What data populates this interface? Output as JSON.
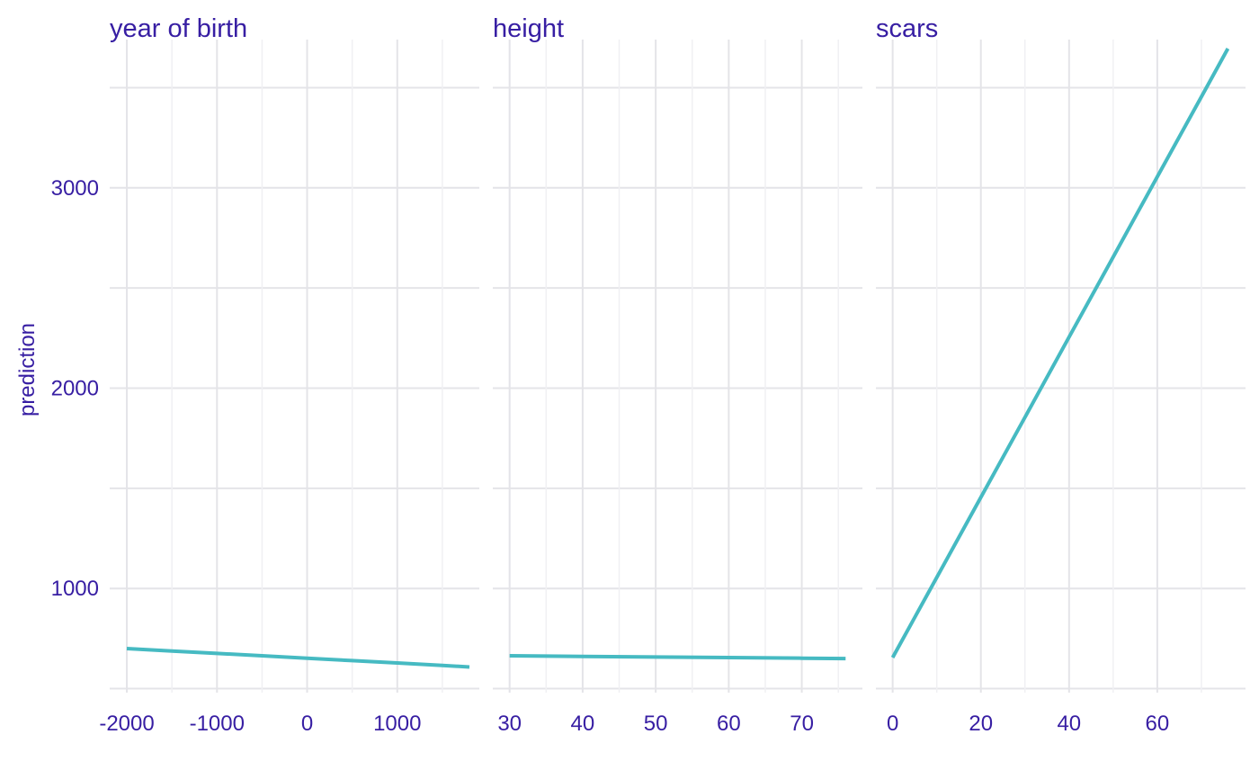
{
  "chart_data": {
    "type": "line",
    "ylabel": "prediction",
    "ylim": [
      480,
      3740
    ],
    "y_ticks": [
      1000,
      2000,
      3000
    ],
    "y_tick_labels": [
      "1000",
      "2000",
      "3000"
    ],
    "y_minor": [
      500,
      1500,
      2500,
      3500
    ],
    "grid": true,
    "colors": {
      "line": "#46bac2",
      "text": "#371ea3",
      "grid": "#e4e4e8"
    },
    "panels": [
      {
        "title": "year  of  birth",
        "xlim": [
          -2190,
          1910
        ],
        "x_ticks": [
          -2000,
          -1000,
          0,
          1000
        ],
        "x_tick_labels": [
          "-2000",
          "-1000",
          "0",
          "1000"
        ],
        "x_minor": [
          -1500,
          -500,
          500,
          1500
        ],
        "series": [
          {
            "x": [
              -2000,
              -1500,
              -1000,
              -500,
              0,
              500,
              1000,
              1500,
              1800
            ],
            "y": [
              700,
              688,
              676,
              664,
              652,
              640,
              628,
              616,
              608
            ]
          }
        ]
      },
      {
        "title": "height",
        "xlim": [
          27.7,
          78.3
        ],
        "x_ticks": [
          30,
          40,
          50,
          60,
          70
        ],
        "x_tick_labels": [
          "30",
          "40",
          "50",
          "60",
          "70"
        ],
        "x_minor": [
          35,
          45,
          55,
          65,
          75
        ],
        "series": [
          {
            "x": [
              30,
              40,
              50,
              60,
              70,
              76
            ],
            "y": [
              664,
              661,
              658,
              655,
              652,
              650
            ]
          }
        ]
      },
      {
        "title": "scars",
        "xlim": [
          -3.8,
          80
        ],
        "x_ticks": [
          0,
          20,
          40,
          60
        ],
        "x_tick_labels": [
          "0",
          "20",
          "40",
          "60"
        ],
        "x_minor": [
          10,
          30,
          50,
          70
        ],
        "series": [
          {
            "x": [
              0,
              10,
              20,
              30,
              40,
              50,
              60,
              70,
              76
            ],
            "y": [
              655,
              1055,
              1455,
              1855,
              2255,
              2655,
              3055,
              3455,
              3695
            ]
          }
        ]
      }
    ]
  }
}
